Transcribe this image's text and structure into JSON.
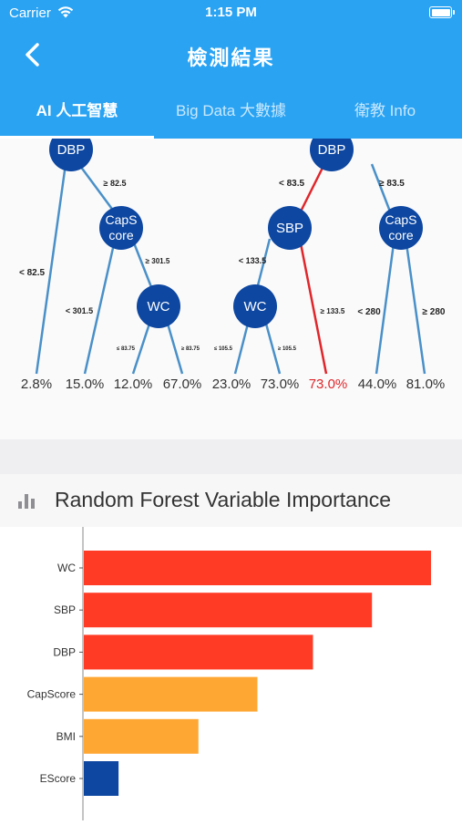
{
  "status": {
    "carrier": "Carrier",
    "time": "1:15 PM"
  },
  "nav": {
    "title": "檢測結果"
  },
  "tabs": [
    {
      "label": "AI 人工智慧",
      "active": true
    },
    {
      "label": "Big Data 大數據",
      "active": false
    },
    {
      "label": "衛教 Info",
      "active": false
    }
  ],
  "tree_left": {
    "root": "DBP",
    "node2": [
      "CapS",
      "core"
    ],
    "node3": "WC",
    "edges": {
      "root_left": "< 82.5",
      "root_right": "≥ 82.5",
      "n2_left": "< 301.5",
      "n2_right": "≥ 301.5",
      "n3_left": "≤ 83.75",
      "n3_right": "≥ 83.75"
    },
    "leaves": [
      "2.8%",
      "15.0%",
      "12.0%",
      "67.0%"
    ]
  },
  "tree_right": {
    "root": "DBP",
    "node_left": "SBP",
    "node_right": [
      "CapS",
      "core"
    ],
    "node_wc": "WC",
    "edges": {
      "root_left": "< 83.5",
      "root_right": "≥ 83.5",
      "sbp_left": "< 133.5",
      "sbp_right": "≥ 133.5",
      "wc_left": "≤ 105.5",
      "wc_right": "≥ 105.5",
      "cap_left": "< 280",
      "cap_right": "≥ 280"
    },
    "leaves": [
      "23.0%",
      "73.0%",
      "73.0%",
      "44.0%",
      "81.0%"
    ],
    "highlight_color": "#e0262b"
  },
  "section": {
    "title": "Random Forest Variable Importance",
    "icon": "bar-chart-icon"
  },
  "colors": {
    "header": "#2aa3f3",
    "node": "#0d47a1",
    "edge": "#4a90c8",
    "red": "#ff3b25",
    "orange": "#ffa733",
    "blue": "#0d47a1"
  },
  "chart_data": {
    "type": "bar",
    "orientation": "horizontal",
    "categories": [
      "WC",
      "SBP",
      "DBP",
      "CapScore",
      "BMI",
      "EScore"
    ],
    "values": [
      100,
      83,
      66,
      50,
      33,
      10
    ],
    "colors": [
      "#ff3b25",
      "#ff3b25",
      "#ff3b25",
      "#ffa733",
      "#ffa733",
      "#0d47a1"
    ],
    "title": "Random Forest Variable Importance",
    "xlim": [
      0,
      100
    ]
  }
}
